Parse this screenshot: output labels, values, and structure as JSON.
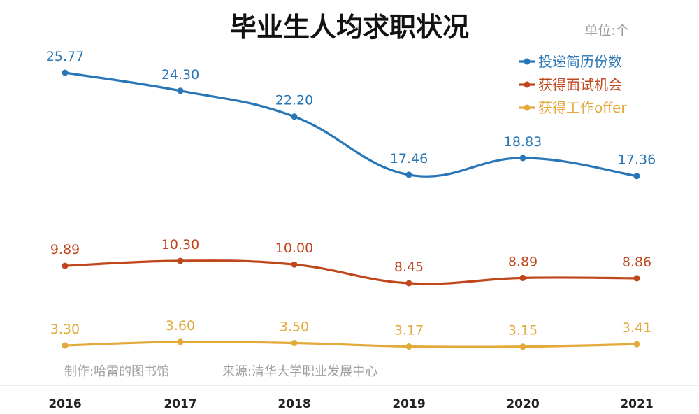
{
  "chart_data": {
    "type": "line",
    "title": "毕业生人均求职状况",
    "unit_note": "单位:个",
    "categories": [
      "2016",
      "2017",
      "2018",
      "2019",
      "2020",
      "2021"
    ],
    "series": [
      {
        "name": "投递简历份数",
        "color": "#2876b6",
        "values": [
          25.77,
          24.3,
          22.2,
          17.46,
          18.83,
          17.36
        ],
        "labels": [
          "25.77",
          "24.30",
          "22.20",
          "17.46",
          "18.83",
          "17.36"
        ]
      },
      {
        "name": "获得面试机会",
        "color": "#c0461c",
        "values": [
          9.89,
          10.3,
          10.0,
          8.45,
          8.89,
          8.86
        ],
        "labels": [
          "9.89",
          "10.30",
          "10.00",
          "8.45",
          "8.89",
          "8.86"
        ]
      },
      {
        "name": "获得工作offer",
        "color": "#e3a93b",
        "values": [
          3.3,
          3.6,
          3.5,
          3.17,
          3.15,
          3.41
        ],
        "labels": [
          "3.30",
          "3.60",
          "3.50",
          "3.17",
          "3.15",
          "3.41"
        ]
      }
    ],
    "legend_position": "top-right",
    "grid": false
  },
  "credits": {
    "maker": "制作:哈雷的图书馆",
    "source": "来源:清华大学职业发展中心"
  }
}
